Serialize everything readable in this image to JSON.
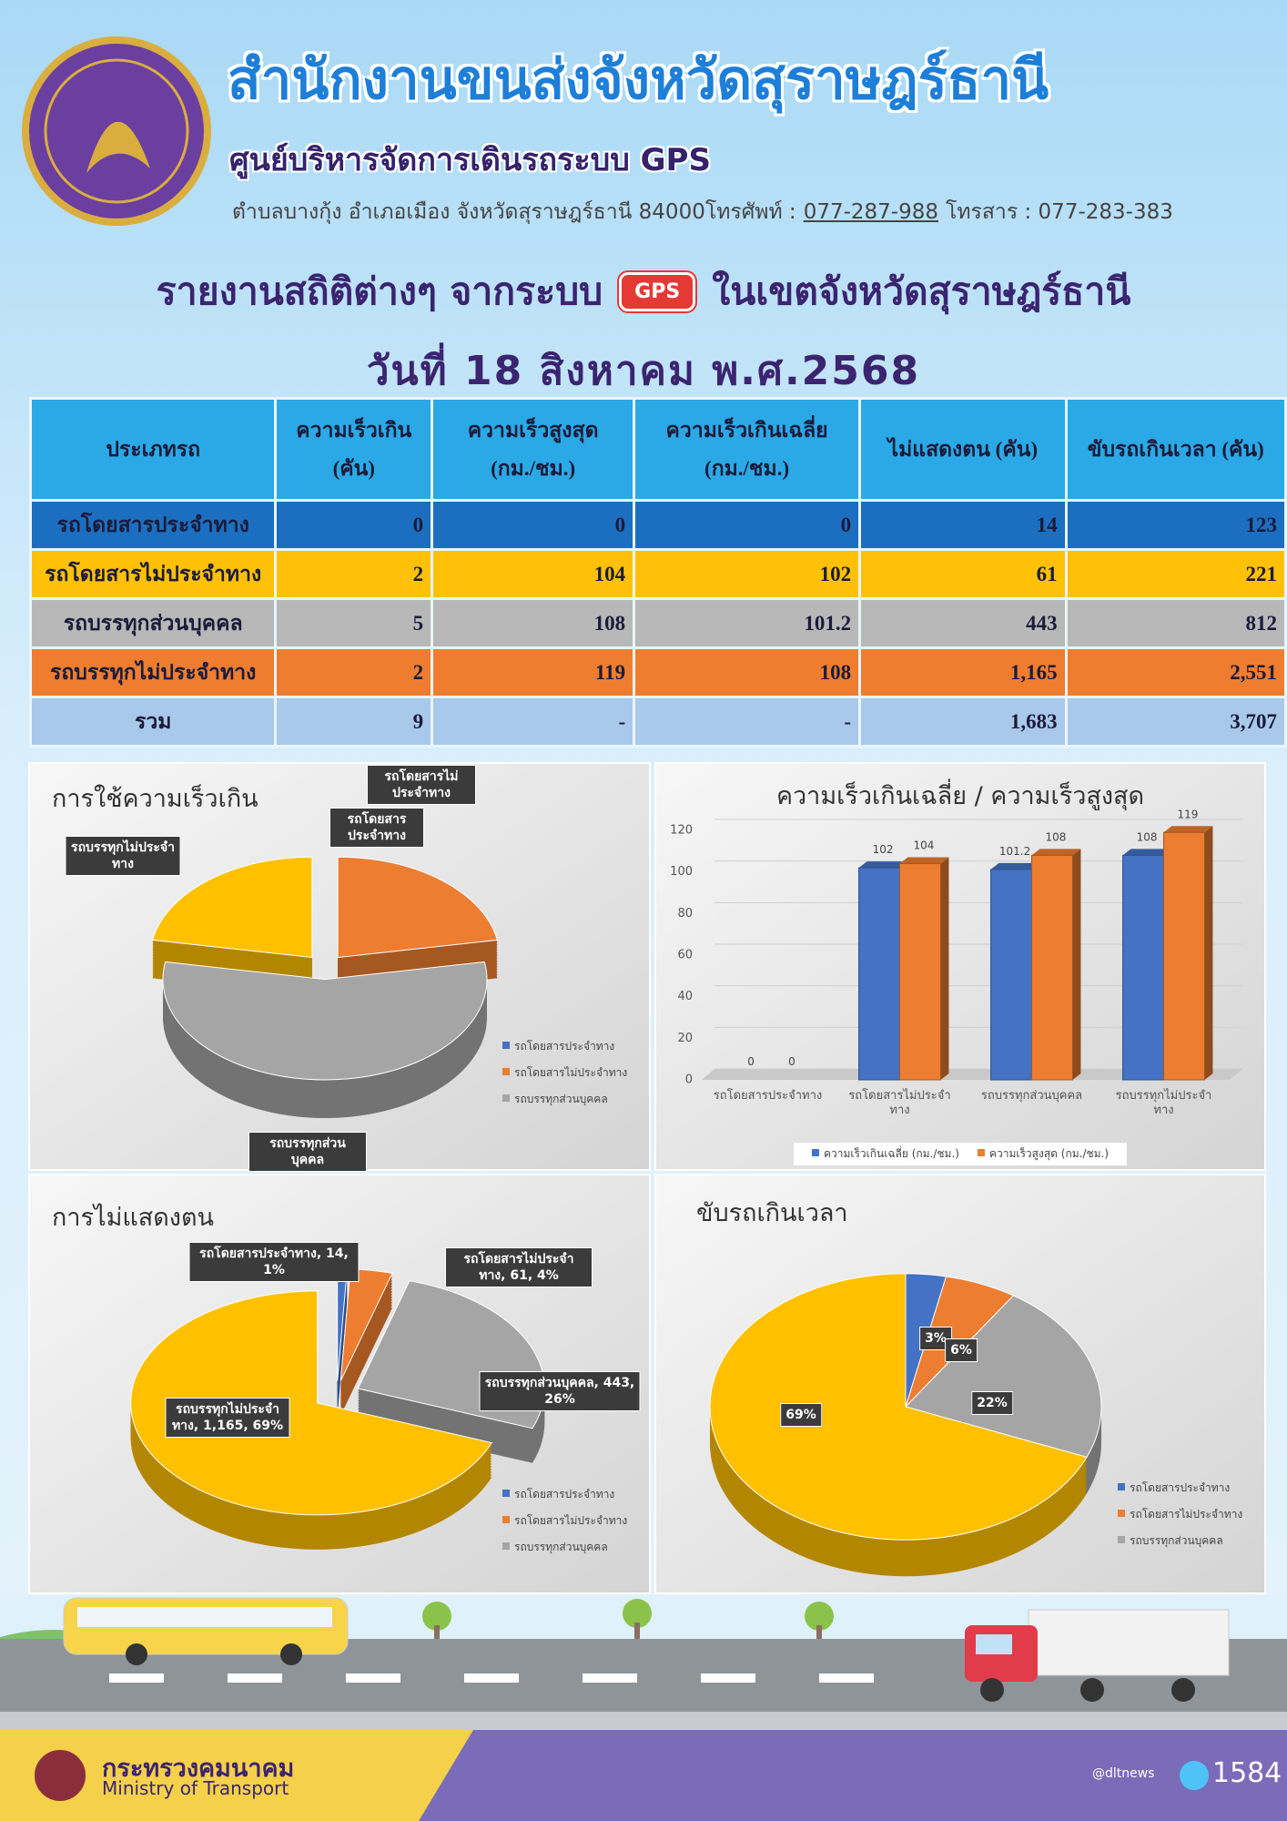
{
  "header": {
    "title": "สำนักงานขนส่งจังหวัดสุราษฎร์ธานี",
    "subtitle": "ศูนย์บริหารจัดการเดินรถระบบ GPS",
    "address": "ตำบลบางกุ้ง อำเภอเมือง จังหวัดสุราษฎร์ธานี 84000โทรศัพท์ :",
    "phone": "077-287-988",
    "fax": "โทรสาร : 077-283-383"
  },
  "report": {
    "title_left": "รายงานสถิติต่างๆ จากระบบ",
    "gps_badge": "GPS",
    "title_right": "ในเขตจังหวัดสุราษฎร์ธานี",
    "date": "วันที่ 18 สิงหาคม พ.ศ.2568"
  },
  "table": {
    "columns": [
      [
        "ประเภทรถ"
      ],
      [
        "ความเร็วเกิน",
        "(คัน)"
      ],
      [
        "ความเร็วสูงสุด",
        "(กม./ชม.)"
      ],
      [
        "ความเร็วเกินเฉลี่ย",
        "(กม./ชม.)"
      ],
      [
        "ไม่แสดงตน (คัน)"
      ],
      [
        "ขับรถเกินเวลา (คัน)"
      ]
    ],
    "rows": [
      [
        "รถโดยสารประจำทาง",
        0,
        0,
        0,
        14,
        123
      ],
      [
        "รถโดยสารไม่ประจำทาง",
        2,
        104,
        102,
        61,
        221
      ],
      [
        "รถบรรทุกส่วนบุคคล",
        5,
        108,
        101.2,
        443,
        812
      ],
      [
        "รถบรรทุกไม่ประจำทาง",
        2,
        119,
        108,
        "1,165",
        "2,551"
      ],
      [
        "รวม",
        9,
        "-",
        "-",
        "1,683",
        "3,707"
      ]
    ]
  },
  "chart_data": [
    {
      "type": "pie",
      "title": "การใช้ความเร็วเกิน",
      "categories": [
        "รถโดยสารประจำทาง",
        "รถโดยสารไม่ประจำทาง",
        "รถบรรทุกส่วนบุคคล",
        "รถบรรทุกไม่ประจำทาง"
      ],
      "values": [
        0,
        2,
        5,
        2
      ],
      "colors": [
        "#4472c4",
        "#ed7d31",
        "#a5a5a5",
        "#ffc000"
      ],
      "legend": "right"
    },
    {
      "type": "bar",
      "title": "ความเร็วเกินเฉลี่ย / ความเร็วสูงสุด",
      "categories": [
        "รถโดยสารประจำทาง",
        "รถโดยสารไม่ประจำทาง",
        "รถบรรทุกส่วนบุคคล",
        "รถบรรทุกไม่ประจำทาง"
      ],
      "series": [
        {
          "name": "ความเร็วเกินเฉลี่ย (กม./ชม.)",
          "color": "#4472c4",
          "values": [
            0,
            102,
            101.2,
            108
          ]
        },
        {
          "name": "ความเร็วสูงสุด (กม./ชม.)",
          "color": "#ed7d31",
          "values": [
            0,
            104,
            108,
            119
          ]
        }
      ],
      "ylim": [
        0,
        120
      ],
      "yticks": [
        0,
        20,
        40,
        60,
        80,
        100,
        120
      ],
      "grid": true,
      "legend": "bottom"
    },
    {
      "type": "pie",
      "title": "การไม่แสดงตน",
      "categories": [
        "รถโดยสารประจำทาง",
        "รถโดยสารไม่ประจำทาง",
        "รถบรรทุกส่วนบุคคล",
        "รถบรรทุกไม่ประจำทาง"
      ],
      "values": [
        14,
        61,
        443,
        1165
      ],
      "value_labels": [
        "รถโดยสารประจำทาง, 14, 1%",
        "รถโดยสารไม่ประจำทาง, 61, 4%",
        "รถบรรทุกส่วนบุคคล, 443, 26%",
        "รถบรรทุกไม่ประจำทาง, 1,165, 69%"
      ],
      "colors": [
        "#4472c4",
        "#ed7d31",
        "#a5a5a5",
        "#ffc000"
      ],
      "legend": "right"
    },
    {
      "type": "pie",
      "title": "ขับรถเกินเวลา",
      "categories": [
        "รถโดยสารประจำทาง",
        "รถโดยสารไม่ประจำทาง",
        "รถบรรทุกส่วนบุคคล",
        "รถบรรทุกไม่ประจำทาง"
      ],
      "values": [
        123,
        221,
        812,
        2551
      ],
      "value_labels": [
        "3%",
        "6%",
        "22%",
        "69%"
      ],
      "colors": [
        "#4472c4",
        "#ed7d31",
        "#a5a5a5",
        "#ffc000"
      ],
      "legend": "right"
    }
  ],
  "footer": {
    "ministry_th": "กระทรวงคมนาคม",
    "ministry_en": "Ministry of Transport",
    "social": "@dltnews",
    "call_center": "1584"
  }
}
